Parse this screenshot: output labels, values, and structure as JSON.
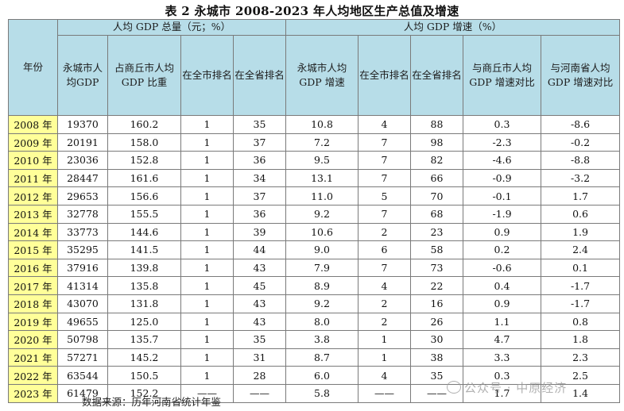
{
  "title": "表 2  永城市 2008-2023 年人均地区生产总值及增速",
  "header": {
    "year": "年份",
    "group1": "人均 GDP 总量（元；%）",
    "group2": "人均 GDP 增速（%）",
    "cols": [
      "永城市人均GDP",
      "占商丘市人均 GDP 比重",
      "在全市排名",
      "在全省排名",
      "永城市人均GDP 增速",
      "在全市排名",
      "在全省排名",
      "与商丘市人均GDP 增速对比",
      "与河南省人均GDP 增速对比"
    ]
  },
  "rows": [
    [
      "2008 年",
      "19370",
      "160.2",
      "1",
      "35",
      "10.8",
      "4",
      "88",
      "0.3",
      "-8.6"
    ],
    [
      "2009 年",
      "20191",
      "158.0",
      "1",
      "37",
      "7.2",
      "7",
      "98",
      "-2.3",
      "-0.2"
    ],
    [
      "2010 年",
      "23036",
      "152.8",
      "1",
      "36",
      "9.5",
      "7",
      "82",
      "-4.6",
      "-8.8"
    ],
    [
      "2011 年",
      "28447",
      "161.6",
      "1",
      "34",
      "13.1",
      "7",
      "66",
      "-0.9",
      "-3.2"
    ],
    [
      "2012 年",
      "29653",
      "156.6",
      "1",
      "37",
      "11.0",
      "5",
      "70",
      "-0.1",
      "1.7"
    ],
    [
      "2013 年",
      "32778",
      "155.5",
      "1",
      "36",
      "9.2",
      "7",
      "68",
      "-1.9",
      "0.6"
    ],
    [
      "2014 年",
      "33773",
      "144.6",
      "1",
      "39",
      "10.6",
      "2",
      "23",
      "0.9",
      "1.9"
    ],
    [
      "2015 年",
      "35295",
      "141.5",
      "1",
      "44",
      "9.0",
      "6",
      "58",
      "0.2",
      "2.4"
    ],
    [
      "2016 年",
      "37916",
      "139.8",
      "1",
      "43",
      "7.9",
      "7",
      "73",
      "-0.6",
      "0.1"
    ],
    [
      "2017 年",
      "41314",
      "135.8",
      "1",
      "45",
      "8.9",
      "4",
      "22",
      "0.4",
      "-1.7"
    ],
    [
      "2018 年",
      "43070",
      "131.8",
      "1",
      "43",
      "9.2",
      "2",
      "16",
      "0.9",
      "-1.7"
    ],
    [
      "2019 年",
      "49655",
      "125.0",
      "1",
      "43",
      "8.0",
      "2",
      "26",
      "1.1",
      "0.8"
    ],
    [
      "2020 年",
      "50798",
      "135.7",
      "1",
      "35",
      "3.8",
      "1",
      "30",
      "4.7",
      "1.8"
    ],
    [
      "2021 年",
      "57271",
      "145.2",
      "1",
      "31",
      "8.7",
      "1",
      "38",
      "3.3",
      "2.3"
    ],
    [
      "2022 年",
      "63544",
      "150.5",
      "1",
      "28",
      "6.0",
      "4",
      "35",
      "0.3",
      "2.5"
    ],
    [
      "2023 年",
      "61479",
      "152.2",
      "——",
      "——",
      "5.8",
      "——",
      "——",
      "1.7",
      "1.4"
    ]
  ],
  "source": "数据来源：历年河南省统计年鉴",
  "watermark": "公众号 · 中原经济"
}
